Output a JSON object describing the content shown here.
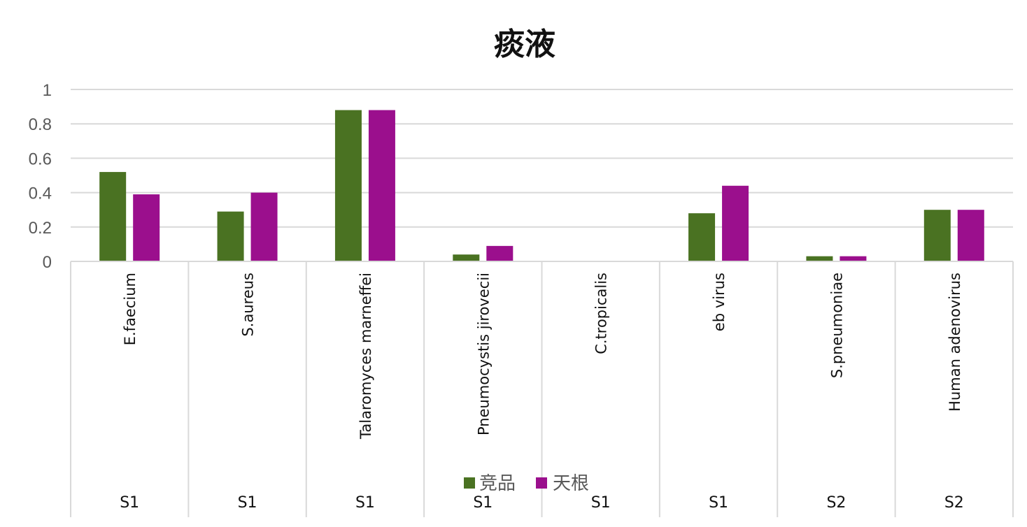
{
  "chart_data": {
    "type": "bar",
    "title": "痰液",
    "xlabel": "",
    "ylabel": "",
    "ylim": [
      0,
      1
    ],
    "yticks": [
      "0",
      "0.2",
      "0.4",
      "0.6",
      "0.8",
      "1"
    ],
    "categories": [
      "E.faecium",
      "S.aureus",
      "Talaromyces marneffei",
      "Pneumocystis jirovecii",
      "C.tropicalis",
      "eb virus",
      "S.pneumoniae",
      "Human adenovirus"
    ],
    "groups": [
      "S1",
      "S1",
      "S1",
      "S1",
      "S1",
      "S1",
      "S2",
      "S2"
    ],
    "series": [
      {
        "name": "竞品",
        "color": "#4a7222",
        "values": [
          0.52,
          0.29,
          0.88,
          0.04,
          0,
          0.28,
          0.03,
          0.3
        ]
      },
      {
        "name": "天根",
        "color": "#9b0f8d",
        "values": [
          0.39,
          0.4,
          0.88,
          0.09,
          0,
          0.44,
          0.03,
          0.3
        ]
      }
    ],
    "grid": true,
    "legend_position": "bottom-center"
  }
}
